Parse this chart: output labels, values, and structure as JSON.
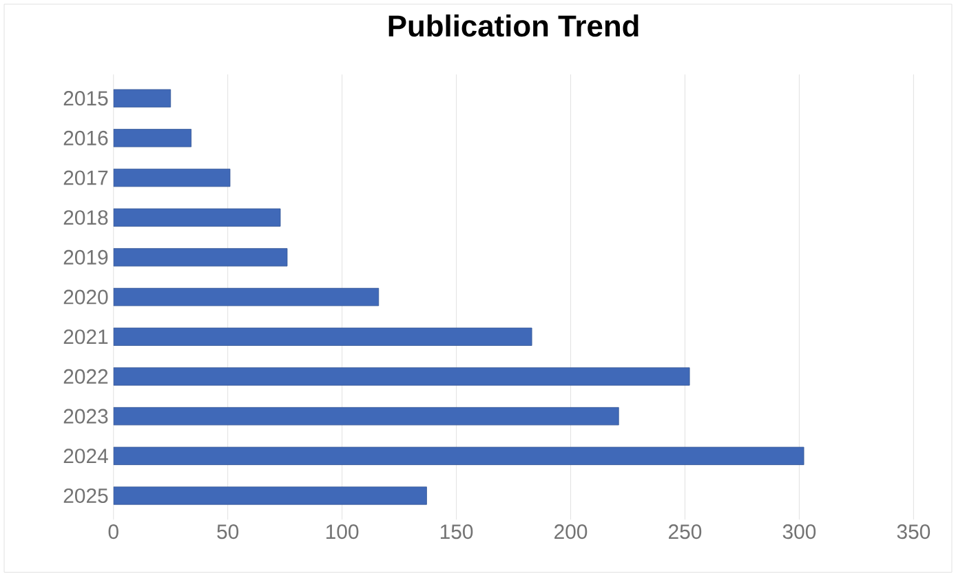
{
  "chart_data": {
    "type": "bar",
    "orientation": "horizontal",
    "title": "Publication Trend",
    "categories": [
      "2015",
      "2016",
      "2017",
      "2018",
      "2019",
      "2020",
      "2021",
      "2022",
      "2023",
      "2024",
      "2025"
    ],
    "values": [
      25,
      34,
      51,
      73,
      76,
      116,
      183,
      252,
      221,
      302,
      137
    ],
    "color": "#4069b8",
    "xlim": [
      0,
      350
    ],
    "xticks": [
      0,
      50,
      100,
      150,
      200,
      250,
      300,
      350
    ],
    "grid": "x"
  }
}
